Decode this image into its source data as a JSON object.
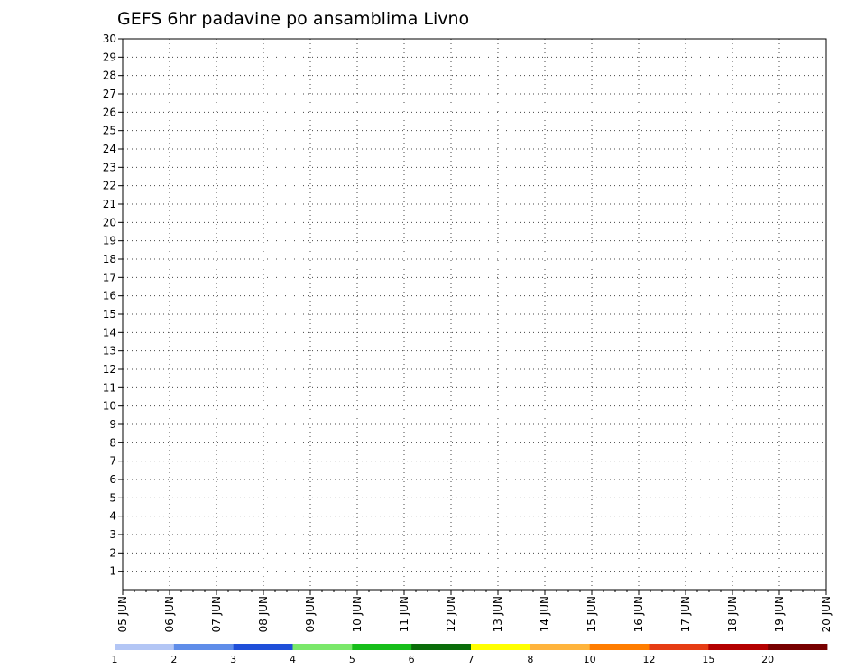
{
  "chart_data": {
    "type": "heatmap",
    "title": "GEFS 6hr padavine po ansamblima Livno",
    "xlabel": "",
    "ylabel": "",
    "x_tick_labels": [
      "05 JUN",
      "06 JUN",
      "07 JUN",
      "08 JUN",
      "09 JUN",
      "10 JUN",
      "11 JUN",
      "12 JUN",
      "13 JUN",
      "14 JUN",
      "15 JUN",
      "16 JUN",
      "17 JUN",
      "18 JUN",
      "19 JUN",
      "20 JUN"
    ],
    "x_range": [
      "05 JUN 00Z",
      "20 JUN 00Z"
    ],
    "time_step_hours": 6,
    "y_values": [
      1,
      2,
      3,
      4,
      5,
      6,
      7,
      8,
      9,
      10,
      11,
      12,
      13,
      14,
      15,
      16,
      17,
      18,
      19,
      20,
      21,
      22,
      23,
      24,
      25,
      26,
      27,
      28,
      29,
      30
    ],
    "ylim": [
      0,
      30
    ],
    "grid": true,
    "legend": {
      "placement": "bottom",
      "levels": [
        1,
        2,
        3,
        4,
        5,
        6,
        7,
        8,
        10,
        12,
        15,
        20
      ],
      "colors": [
        "#b3c6f5",
        "#5f8de9",
        "#1f4fd9",
        "#7ae86a",
        "#17be1a",
        "#0a6d0a",
        "#ffff00",
        "#ffb43c",
        "#ff7d00",
        "#e63c14",
        "#b40000",
        "#780000"
      ]
    },
    "rows": [
      "................................................................",
      "................................................................",
      "................................................................",
      "................................................................",
      "................................................................",
      "................................................................",
      "................................................................",
      "................................................................",
      "................................................................",
      "................................................................",
      "................................................................",
      "................................................................",
      "................................................................",
      "................................................................",
      "................................................................",
      "................................................................",
      "................................................................",
      "................................................................",
      "................................................................",
      "................................................................",
      "................................................................",
      "................................................................",
      "................................................................",
      "................................................................",
      "................................................................",
      "................................................................",
      "................................................................",
      "................................................................",
      "................................................................",
      "................................................................"
    ]
  }
}
